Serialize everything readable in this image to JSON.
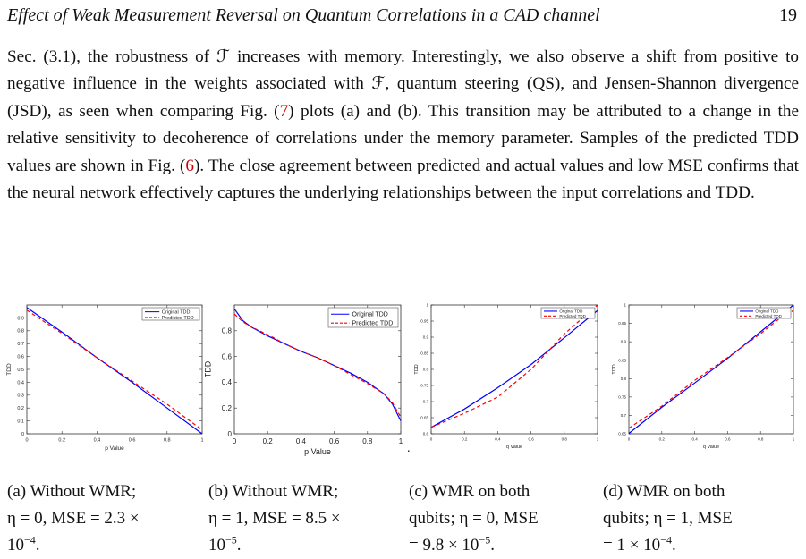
{
  "header": {
    "title": "Effect of Weak Measurement Reversal on Quantum Correlations in a CAD channel",
    "page_number": "19"
  },
  "paragraph": {
    "l1": "Sec. (3.1), the robustness of ℱ increases with memory. Interestingly, we also observe",
    "l2": "a shift from positive to negative influence in the weights associated with ℱ, quantum",
    "l3a": "steering (QS), and Jensen-Shannon divergence (JSD), as seen when comparing Fig. (",
    "ref7": "7",
    "l3b": ")",
    "l4": "plots (a) and (b). This transition may be attributed to a change in the relative sensitivity",
    "l5": "to decoherence of correlations under the memory parameter. Samples of the predicted",
    "l6a": "TDD values are shown in Fig. (",
    "ref6": "6",
    "l6b": "). The close agreement between predicted and actual",
    "l7": "values and low MSE confirms that the neural network effectively captures the underlying",
    "l8": "relationships between the input correlations and TDD."
  },
  "captions": [
    {
      "l1": "(a)  Without  WMR;",
      "l2": "η = 0,  MSE = 2.3 ×",
      "l3": "10",
      "l3_exp": "−4",
      "l3_end": "."
    },
    {
      "l1": "(b)  Without  WMR;",
      "l2": "η = 1,  MSE = 8.5 ×",
      "l3": "10",
      "l3_exp": "−5",
      "l3_end": "."
    },
    {
      "l1": "(c)  WMR  on  both",
      "l2": "qubits;  η = 0,  MSE",
      "l3": "= 9.8 × 10",
      "l3_exp": "−5",
      "l3_end": "."
    },
    {
      "l1": "(d)  WMR  on  both",
      "l2": "qubits;  η = 1,  MSE",
      "l3": "= 1 × 10",
      "l3_exp": "−4",
      "l3_end": "."
    }
  ],
  "stray_mark": ".",
  "colors": {
    "original": "#0000ff",
    "predicted": "#ff0000",
    "ref": "#cc0000"
  },
  "chart_data": [
    {
      "type": "line",
      "xlabel": "p Value",
      "ylabel": "TDD",
      "xlim": [
        0,
        1
      ],
      "ylim": [
        0,
        1
      ],
      "xticks": [
        "0",
        "0.2",
        "0.4",
        "0.6",
        "0.8",
        "1"
      ],
      "yticks": [
        "0",
        "0.1",
        "0.2",
        "0.3",
        "0.4",
        "0.5",
        "0.6",
        "0.7",
        "0.8",
        "0.9"
      ],
      "legend_position": "top-right",
      "grid": false,
      "series": [
        {
          "name": "Original TDD",
          "style": "solid",
          "x": [
            0,
            0.2,
            0.4,
            0.6,
            0.8,
            1.0
          ],
          "y": [
            0.98,
            0.79,
            0.59,
            0.4,
            0.2,
            0.0
          ]
        },
        {
          "name": "Predicted TDD",
          "style": "dashed",
          "x": [
            0,
            0.2,
            0.4,
            0.6,
            0.8,
            1.0
          ],
          "y": [
            0.96,
            0.78,
            0.59,
            0.41,
            0.23,
            0.03
          ]
        }
      ]
    },
    {
      "type": "line",
      "xlabel": "p Value",
      "ylabel": "TDD",
      "xlim": [
        0,
        1
      ],
      "ylim": [
        0,
        1
      ],
      "xticks": [
        "0",
        "0.2",
        "0.4",
        "0.6",
        "0.8",
        "1"
      ],
      "yticks": [
        "0",
        "0.2",
        "0.4",
        "0.6",
        "0.8"
      ],
      "legend_position": "top-right",
      "grid": false,
      "series": [
        {
          "name": "Original TDD",
          "style": "solid",
          "x": [
            0,
            0.05,
            0.1,
            0.2,
            0.3,
            0.4,
            0.5,
            0.6,
            0.7,
            0.8,
            0.9,
            0.95,
            1.0
          ],
          "y": [
            0.97,
            0.88,
            0.83,
            0.76,
            0.7,
            0.64,
            0.59,
            0.53,
            0.47,
            0.4,
            0.31,
            0.23,
            0.1
          ]
        },
        {
          "name": "Predicted TDD",
          "style": "dashed",
          "x": [
            0,
            0.05,
            0.1,
            0.2,
            0.3,
            0.4,
            0.5,
            0.6,
            0.7,
            0.8,
            0.9,
            0.95,
            1.0
          ],
          "y": [
            0.93,
            0.87,
            0.83,
            0.77,
            0.7,
            0.64,
            0.59,
            0.53,
            0.46,
            0.39,
            0.31,
            0.24,
            0.13
          ]
        }
      ]
    },
    {
      "type": "line",
      "xlabel": "q Value",
      "ylabel": "TDD",
      "xlim": [
        0,
        1
      ],
      "ylim": [
        0.6,
        1
      ],
      "xticks": [
        "0",
        "0.2",
        "0.4",
        "0.6",
        "0.8",
        "1"
      ],
      "yticks": [
        "0.6",
        "0.65",
        "0.7",
        "0.75",
        "0.8",
        "0.85",
        "0.9",
        "0.95",
        "1"
      ],
      "legend_position": "top-right",
      "grid": false,
      "series": [
        {
          "name": "Original TDD",
          "style": "solid",
          "x": [
            0,
            0.2,
            0.4,
            0.6,
            0.8,
            1.0
          ],
          "y": [
            0.62,
            0.677,
            0.743,
            0.815,
            0.898,
            0.983
          ]
        },
        {
          "name": "Predicted TDD",
          "style": "dashed",
          "x": [
            0,
            0.2,
            0.4,
            0.6,
            0.8,
            0.9,
            1.0
          ],
          "y": [
            0.62,
            0.664,
            0.714,
            0.8,
            0.91,
            0.955,
            1.0
          ]
        }
      ]
    },
    {
      "type": "line",
      "xlabel": "q Value",
      "ylabel": "TDD",
      "xlim": [
        0,
        1
      ],
      "ylim": [
        0.65,
        1
      ],
      "xticks": [
        "0",
        "0.2",
        "0.4",
        "0.6",
        "0.8",
        "1"
      ],
      "yticks": [
        "0.65",
        "0.7",
        "0.75",
        "0.8",
        "0.85",
        "0.9",
        "0.95",
        "1"
      ],
      "legend_position": "top-right",
      "grid": false,
      "series": [
        {
          "name": "Original TDD",
          "style": "solid",
          "x": [
            0,
            0.2,
            0.4,
            0.6,
            0.8,
            1.0
          ],
          "y": [
            0.651,
            0.722,
            0.788,
            0.855,
            0.927,
            1.0
          ]
        },
        {
          "name": "Predicted TDD",
          "style": "dashed",
          "x": [
            0,
            0.2,
            0.4,
            0.6,
            0.8,
            0.9,
            1.0
          ],
          "y": [
            0.665,
            0.725,
            0.795,
            0.857,
            0.922,
            0.958,
            0.985
          ]
        }
      ]
    }
  ]
}
